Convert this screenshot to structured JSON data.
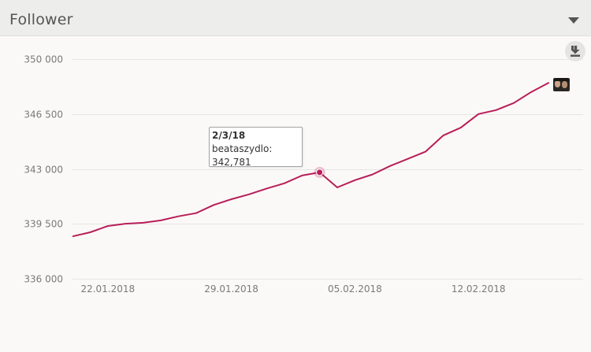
{
  "header": {
    "title": "Follower"
  },
  "icons": {
    "collapse": "chevron-down-icon",
    "download": "download-icon"
  },
  "tooltip": {
    "date": "2/3/18",
    "series": "beataszydlo:",
    "value": "342,781"
  },
  "colors": {
    "line": "#b81e59",
    "grid": "#e8e6e3",
    "header_bg": "#ededeb",
    "page_bg": "#fbf9f7"
  },
  "chart_data": {
    "type": "line",
    "title": "Follower",
    "xlabel": "",
    "ylabel": "",
    "ylim": [
      336000,
      350000
    ],
    "y_ticks": [
      350000,
      346500,
      343000,
      339500,
      336000
    ],
    "y_tick_labels": [
      "350 000",
      "346 500",
      "343 000",
      "339 500",
      "336 000"
    ],
    "x_tick_labels": [
      "22.01.2018",
      "29.01.2018",
      "05.02.2018",
      "12.02.2018"
    ],
    "x_tick_dates": [
      "2018-01-22",
      "2018-01-29",
      "2018-02-05",
      "2018-02-12"
    ],
    "grid": true,
    "series": [
      {
        "name": "beataszydlo",
        "points": [
          [
            "2018-01-20",
            338700
          ],
          [
            "2018-01-21",
            338960
          ],
          [
            "2018-01-22",
            339360
          ],
          [
            "2018-01-23",
            339510
          ],
          [
            "2018-01-24",
            339570
          ],
          [
            "2018-01-25",
            339720
          ],
          [
            "2018-01-26",
            339980
          ],
          [
            "2018-01-27",
            340180
          ],
          [
            "2018-01-28",
            340700
          ],
          [
            "2018-01-29",
            341070
          ],
          [
            "2018-01-30",
            341380
          ],
          [
            "2018-01-31",
            341750
          ],
          [
            "2018-02-01",
            342080
          ],
          [
            "2018-02-02",
            342580
          ],
          [
            "2018-02-03",
            342781
          ],
          [
            "2018-02-04",
            341820
          ],
          [
            "2018-02-05",
            342280
          ],
          [
            "2018-02-06",
            342650
          ],
          [
            "2018-02-07",
            343190
          ],
          [
            "2018-02-08",
            343640
          ],
          [
            "2018-02-09",
            344100
          ],
          [
            "2018-02-10",
            345130
          ],
          [
            "2018-02-11",
            345630
          ],
          [
            "2018-02-12",
            346500
          ],
          [
            "2018-02-13",
            346750
          ],
          [
            "2018-02-14",
            347200
          ],
          [
            "2018-02-15",
            347910
          ],
          [
            "2018-02-16",
            348500
          ]
        ]
      }
    ],
    "highlighted_point": "2018-02-03"
  }
}
